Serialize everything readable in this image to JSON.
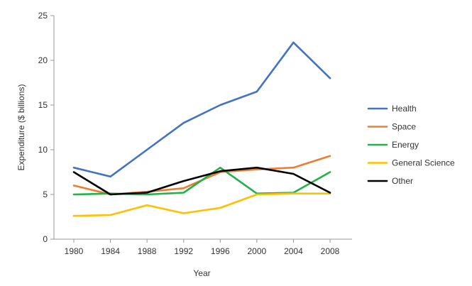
{
  "chart_data": {
    "type": "line",
    "title": "",
    "xlabel": "Year",
    "ylabel": "Expenditure ($ billions)",
    "categories": [
      "1980",
      "1984",
      "1988",
      "1992",
      "1996",
      "2000",
      "2004",
      "2008"
    ],
    "yticks": [
      "0",
      "5",
      "10",
      "15",
      "20",
      "25"
    ],
    "ylim": [
      0,
      25
    ],
    "grid": false,
    "legend_position": "right",
    "series": [
      {
        "name": "Health",
        "color": "#4472C4",
        "values": [
          8,
          7,
          10,
          13,
          15,
          16.5,
          22,
          18
        ]
      },
      {
        "name": "Space",
        "color": "#ED7D31",
        "values": [
          6,
          5,
          5.3,
          5.7,
          7.5,
          7.8,
          8,
          9.3
        ]
      },
      {
        "name": "Energy",
        "color": "#22B14C",
        "values": [
          5,
          5.1,
          5,
          5.2,
          8,
          5.1,
          5.2,
          7.5
        ]
      },
      {
        "name": "General Science",
        "color": "#FFC000",
        "values": [
          2.6,
          2.7,
          3.8,
          2.9,
          3.5,
          5,
          5.1,
          5.1
        ]
      },
      {
        "name": "Other",
        "color": "#000000",
        "values": [
          7.5,
          5,
          5.2,
          6.5,
          7.6,
          8,
          7.3,
          5.2
        ]
      }
    ]
  }
}
